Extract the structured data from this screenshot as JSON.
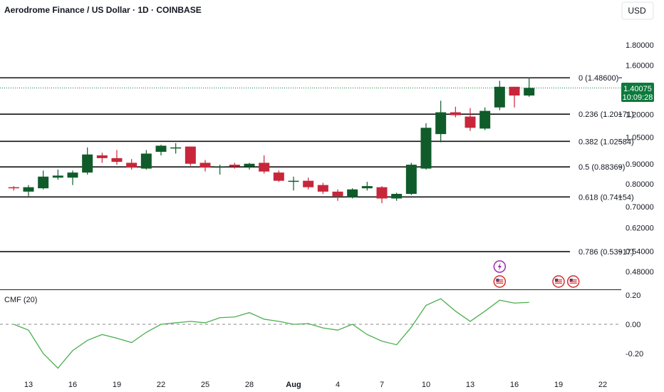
{
  "header": {
    "title": "Aerodrome Finance / US Dollar · 1D · COINBASE",
    "currency": "USD"
  },
  "price_badge": {
    "price": "1.40075",
    "countdown": "10:09:28",
    "color": "#0b7a3b"
  },
  "colors": {
    "up": "#0f5c2a",
    "down": "#c8263a",
    "cmf_line": "#4caf50",
    "fib_line": "#111111"
  },
  "event_icons": [
    {
      "name": "lightning-icon",
      "color": "#9c27b0",
      "x_index": 33
    },
    {
      "name": "us-flag-icon",
      "color": "#d32f2f",
      "x_index": 33
    },
    {
      "name": "us-flag-icon",
      "color": "#d32f2f",
      "x_index": 37
    },
    {
      "name": "us-flag-icon",
      "color": "#d32f2f",
      "x_index": 38
    }
  ],
  "chart_data": [
    {
      "type": "candlestick",
      "title": "Aerodrome Finance / US Dollar · 1D · COINBASE",
      "y_scale": "log",
      "y_ticks": [
        "1.80000",
        "1.60000",
        "1.20000",
        "1.05000",
        "0.90000",
        "0.80000",
        "0.70000",
        "0.62000",
        "0.54000",
        "0.48000"
      ],
      "y_tick_values": [
        1.8,
        1.6,
        1.2,
        1.05,
        0.9,
        0.8,
        0.7,
        0.62,
        0.54,
        0.48
      ],
      "x_ticks": [
        {
          "label": "13",
          "index": 1
        },
        {
          "label": "16",
          "index": 4
        },
        {
          "label": "19",
          "index": 7
        },
        {
          "label": "22",
          "index": 10
        },
        {
          "label": "25",
          "index": 13
        },
        {
          "label": "28",
          "index": 16
        },
        {
          "label": "Aug",
          "index": 19
        },
        {
          "label": "4",
          "index": 22
        },
        {
          "label": "7",
          "index": 25
        },
        {
          "label": "10",
          "index": 28
        },
        {
          "label": "13",
          "index": 31
        },
        {
          "label": "16",
          "index": 34
        },
        {
          "label": "19",
          "index": 37
        },
        {
          "label": "22",
          "index": 40
        }
      ],
      "fib_levels": [
        {
          "label": "0 (1.48600)",
          "value": 1.486
        },
        {
          "label": "0.236 (1.20171)",
          "value": 1.20171
        },
        {
          "label": "0.382 (1.02584)",
          "value": 1.02584
        },
        {
          "label": "0.5 (0.88369)",
          "value": 0.88369
        },
        {
          "label": "0.618 (0.74154)",
          "value": 0.74154
        },
        {
          "label": "0.786 (0.53917)",
          "value": 0.53917
        }
      ],
      "last_price": 1.40075,
      "candles": [
        {
          "o": 0.785,
          "h": 0.79,
          "l": 0.77,
          "c": 0.78
        },
        {
          "o": 0.765,
          "h": 0.795,
          "l": 0.745,
          "c": 0.785
        },
        {
          "o": 0.78,
          "h": 0.865,
          "l": 0.775,
          "c": 0.835
        },
        {
          "o": 0.83,
          "h": 0.87,
          "l": 0.82,
          "c": 0.84
        },
        {
          "o": 0.83,
          "h": 0.865,
          "l": 0.795,
          "c": 0.855
        },
        {
          "o": 0.855,
          "h": 0.99,
          "l": 0.845,
          "c": 0.95
        },
        {
          "o": 0.945,
          "h": 0.96,
          "l": 0.905,
          "c": 0.93
        },
        {
          "o": 0.93,
          "h": 0.975,
          "l": 0.895,
          "c": 0.91
        },
        {
          "o": 0.905,
          "h": 0.925,
          "l": 0.87,
          "c": 0.88
        },
        {
          "o": 0.875,
          "h": 0.975,
          "l": 0.87,
          "c": 0.955
        },
        {
          "o": 0.965,
          "h": 1.005,
          "l": 0.945,
          "c": 1.0
        },
        {
          "o": 0.985,
          "h": 1.015,
          "l": 0.955,
          "c": 0.99
        },
        {
          "o": 0.995,
          "h": 0.995,
          "l": 0.89,
          "c": 0.9
        },
        {
          "o": 0.905,
          "h": 0.92,
          "l": 0.86,
          "c": 0.88
        },
        {
          "o": 0.88,
          "h": 0.895,
          "l": 0.845,
          "c": 0.885
        },
        {
          "o": 0.895,
          "h": 0.905,
          "l": 0.875,
          "c": 0.885
        },
        {
          "o": 0.885,
          "h": 0.905,
          "l": 0.87,
          "c": 0.9
        },
        {
          "o": 0.905,
          "h": 0.945,
          "l": 0.85,
          "c": 0.86
        },
        {
          "o": 0.855,
          "h": 0.865,
          "l": 0.81,
          "c": 0.815
        },
        {
          "o": 0.815,
          "h": 0.835,
          "l": 0.77,
          "c": 0.815
        },
        {
          "o": 0.815,
          "h": 0.83,
          "l": 0.775,
          "c": 0.785
        },
        {
          "o": 0.795,
          "h": 0.805,
          "l": 0.755,
          "c": 0.765
        },
        {
          "o": 0.765,
          "h": 0.775,
          "l": 0.725,
          "c": 0.745
        },
        {
          "o": 0.74,
          "h": 0.78,
          "l": 0.735,
          "c": 0.775
        },
        {
          "o": 0.78,
          "h": 0.81,
          "l": 0.77,
          "c": 0.79
        },
        {
          "o": 0.785,
          "h": 0.79,
          "l": 0.715,
          "c": 0.735
        },
        {
          "o": 0.735,
          "h": 0.76,
          "l": 0.725,
          "c": 0.755
        },
        {
          "o": 0.755,
          "h": 0.905,
          "l": 0.75,
          "c": 0.895
        },
        {
          "o": 0.875,
          "h": 1.14,
          "l": 0.87,
          "c": 1.11
        },
        {
          "o": 1.07,
          "h": 1.3,
          "l": 1.02,
          "c": 1.215
        },
        {
          "o": 1.215,
          "h": 1.255,
          "l": 1.18,
          "c": 1.195
        },
        {
          "o": 1.185,
          "h": 1.245,
          "l": 1.09,
          "c": 1.11
        },
        {
          "o": 1.105,
          "h": 1.25,
          "l": 1.095,
          "c": 1.225
        },
        {
          "o": 1.25,
          "h": 1.46,
          "l": 1.23,
          "c": 1.41
        },
        {
          "o": 1.41,
          "h": 1.41,
          "l": 1.25,
          "c": 1.34
        },
        {
          "o": 1.34,
          "h": 1.49,
          "l": 1.33,
          "c": 1.40075
        }
      ]
    },
    {
      "type": "line",
      "title": "CMF (20)",
      "y_ticks": [
        "0.20",
        "0.00",
        "-0.20"
      ],
      "y_tick_values": [
        0.2,
        0.0,
        -0.2
      ],
      "series": [
        {
          "name": "CMF (20)",
          "values": [
            0.0,
            -0.04,
            -0.2,
            -0.3,
            -0.18,
            -0.11,
            -0.07,
            -0.095,
            -0.125,
            -0.055,
            0.0,
            0.01,
            0.02,
            0.01,
            0.045,
            0.05,
            0.08,
            0.035,
            0.02,
            0.0,
            0.005,
            -0.025,
            -0.04,
            0.0,
            -0.07,
            -0.115,
            -0.14,
            -0.02,
            0.13,
            0.175,
            0.09,
            0.02,
            0.09,
            0.165,
            0.145,
            0.15
          ]
        }
      ]
    }
  ]
}
